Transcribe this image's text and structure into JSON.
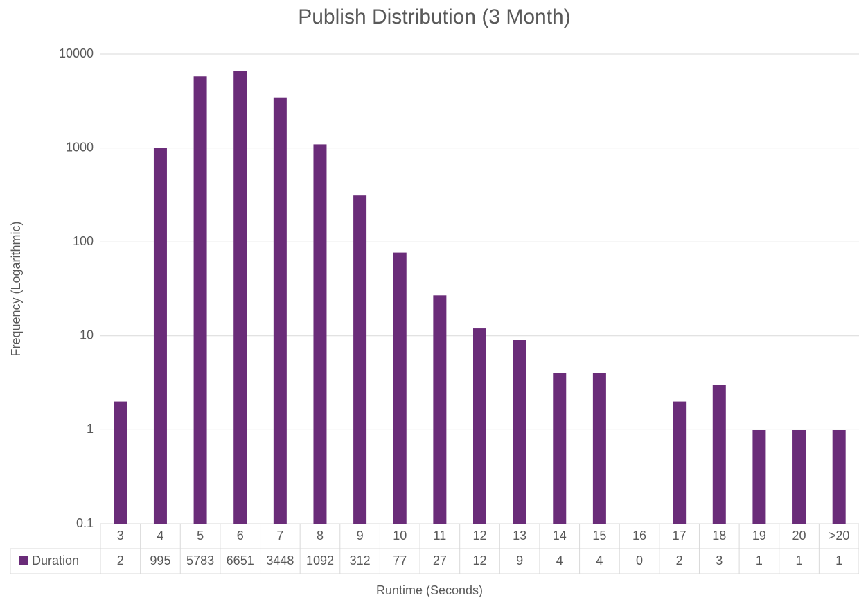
{
  "chart_data": {
    "type": "bar",
    "title": "Publish Distribution (3 Month)",
    "x_label": "Runtime (Seconds)",
    "y_label": "Frequency (Logarithmic)",
    "categories": [
      "3",
      "4",
      "5",
      "6",
      "7",
      "8",
      "9",
      "10",
      "11",
      "12",
      "13",
      "14",
      "15",
      "16",
      "17",
      "18",
      "19",
      "20",
      ">20"
    ],
    "series": [
      {
        "name": "Duration",
        "color": "#6a2c79",
        "values": [
          2,
          995,
          5783,
          6651,
          3448,
          1092,
          312,
          77,
          27,
          12,
          9,
          4,
          4,
          0,
          2,
          3,
          1,
          1,
          1
        ]
      }
    ],
    "log_y": true,
    "ylim": [
      0.1,
      10000
    ],
    "yticks": [
      0.1,
      1,
      10,
      100,
      1000,
      10000
    ],
    "grid": true,
    "data_table": true
  }
}
